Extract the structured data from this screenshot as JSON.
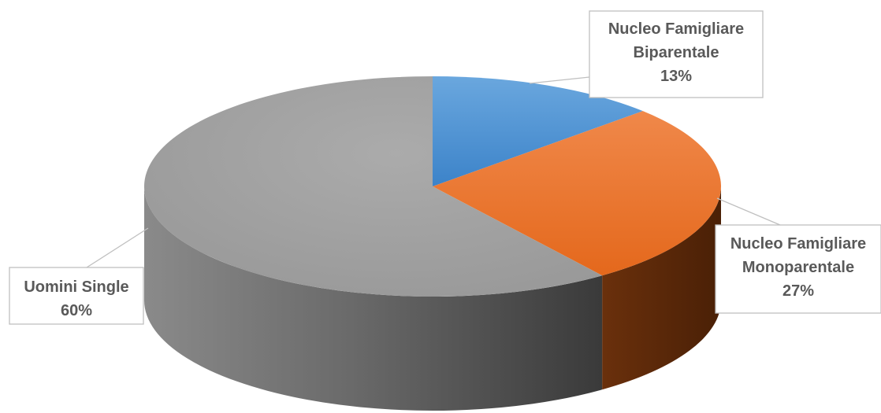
{
  "chart_data": {
    "type": "pie",
    "style": "3d",
    "slices": [
      {
        "label": "Nucleo Famigliare Biparentale",
        "label_lines": [
          "Nucleo Famigliare",
          "Biparentale"
        ],
        "value": 13,
        "value_label": "13%",
        "color": "#5b9bd5"
      },
      {
        "label": "Nucleo Famigliare Monoparentale",
        "label_lines": [
          "Nucleo Famigliare",
          "Monoparentale"
        ],
        "value": 27,
        "value_label": "27%",
        "color": "#ed7d31"
      },
      {
        "label": "Uomini Single",
        "label_lines": [
          "Uomini Single"
        ],
        "value": 60,
        "value_label": "60%",
        "color": "#a5a5a5"
      }
    ]
  }
}
